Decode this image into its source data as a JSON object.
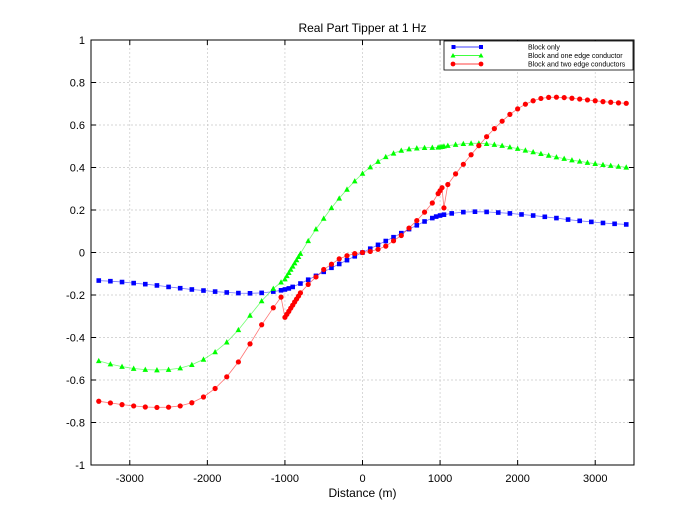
{
  "chart_data": {
    "type": "line",
    "title": "Real Part Tipper at 1 Hz",
    "xlabel": "Distance (m)",
    "ylabel": "",
    "xlim": [
      -3500,
      3500
    ],
    "ylim": [
      -1,
      1
    ],
    "xticks": [
      -3000,
      -2000,
      -1000,
      0,
      1000,
      2000,
      3000
    ],
    "xtick_labels": [
      "-3000",
      "-2000",
      "-1000",
      "0",
      "1000",
      "2000",
      "3000"
    ],
    "yticks": [
      -1,
      -0.8,
      -0.6,
      -0.4,
      -0.2,
      0,
      0.2,
      0.4,
      0.6,
      0.8,
      1
    ],
    "ytick_labels": [
      "-1",
      "-0.8",
      "-0.6",
      "-0.4",
      "-0.2",
      "0",
      "0.2",
      "0.4",
      "0.6",
      "0.8",
      "1"
    ],
    "grid": true,
    "legend_position": "top-right",
    "series": [
      {
        "name": "Block only",
        "color": "#0000ff",
        "marker": "square",
        "x": [
          -3400,
          -3250,
          -3100,
          -2950,
          -2800,
          -2650,
          -2500,
          -2350,
          -2200,
          -2050,
          -1900,
          -1750,
          -1600,
          -1450,
          -1300,
          -1150,
          -1050,
          -1000,
          -950,
          -900,
          -800,
          -700,
          -600,
          -500,
          -400,
          -300,
          -200,
          -100,
          0,
          100,
          200,
          300,
          400,
          500,
          600,
          700,
          800,
          900,
          950,
          1000,
          1050,
          1150,
          1300,
          1450,
          1600,
          1750,
          1900,
          2050,
          2200,
          2350,
          2500,
          2650,
          2800,
          2950,
          3100,
          3250,
          3400
        ],
        "y": [
          -0.132,
          -0.135,
          -0.139,
          -0.144,
          -0.149,
          -0.155,
          -0.162,
          -0.168,
          -0.174,
          -0.179,
          -0.184,
          -0.188,
          -0.191,
          -0.192,
          -0.19,
          -0.184,
          -0.178,
          -0.174,
          -0.169,
          -0.162,
          -0.146,
          -0.128,
          -0.11,
          -0.091,
          -0.072,
          -0.054,
          -0.036,
          -0.018,
          0,
          0.018,
          0.036,
          0.054,
          0.072,
          0.091,
          0.11,
          0.128,
          0.146,
          0.162,
          0.169,
          0.174,
          0.178,
          0.184,
          0.19,
          0.192,
          0.191,
          0.188,
          0.184,
          0.179,
          0.174,
          0.168,
          0.162,
          0.155,
          0.149,
          0.144,
          0.139,
          0.135,
          0.132
        ]
      },
      {
        "name": "Block and one edge conductor",
        "color": "#00ff00",
        "marker": "triangle",
        "x": [
          -3400,
          -3250,
          -3100,
          -2950,
          -2800,
          -2650,
          -2500,
          -2350,
          -2200,
          -2050,
          -1900,
          -1750,
          -1600,
          -1450,
          -1300,
          -1150,
          -1050,
          -1000,
          -975,
          -950,
          -925,
          -900,
          -875,
          -850,
          -825,
          -800,
          -700,
          -600,
          -500,
          -400,
          -300,
          -200,
          -100,
          0,
          100,
          200,
          300,
          400,
          500,
          600,
          700,
          800,
          900,
          975,
          1000,
          1025,
          1050,
          1100,
          1200,
          1300,
          1400,
          1500,
          1600,
          1700,
          1800,
          1900,
          2000,
          2100,
          2200,
          2300,
          2400,
          2500,
          2600,
          2700,
          2800,
          2900,
          3000,
          3100,
          3200,
          3300,
          3400
        ],
        "y": [
          -0.51,
          -0.525,
          -0.537,
          -0.546,
          -0.551,
          -0.553,
          -0.551,
          -0.544,
          -0.528,
          -0.503,
          -0.468,
          -0.422,
          -0.364,
          -0.296,
          -0.228,
          -0.17,
          -0.14,
          -0.125,
          -0.11,
          -0.095,
          -0.08,
          -0.065,
          -0.05,
          -0.035,
          -0.02,
          -0.005,
          0.055,
          0.11,
          0.16,
          0.21,
          0.255,
          0.297,
          0.336,
          0.372,
          0.402,
          0.428,
          0.45,
          0.467,
          0.48,
          0.487,
          0.491,
          0.493,
          0.494,
          0.495,
          0.497,
          0.498,
          0.5,
          0.503,
          0.508,
          0.512,
          0.514,
          0.514,
          0.512,
          0.508,
          0.503,
          0.496,
          0.489,
          0.481,
          0.473,
          0.465,
          0.457,
          0.449,
          0.442,
          0.435,
          0.429,
          0.423,
          0.418,
          0.413,
          0.409,
          0.405,
          0.401
        ]
      },
      {
        "name": "Block and two edge conductors",
        "color": "#ff0000",
        "marker": "circle",
        "x": [
          -3400,
          -3250,
          -3100,
          -2950,
          -2800,
          -2650,
          -2500,
          -2350,
          -2200,
          -2050,
          -1900,
          -1750,
          -1600,
          -1450,
          -1300,
          -1150,
          -1050,
          -1000,
          -975,
          -950,
          -925,
          -900,
          -875,
          -850,
          -825,
          -800,
          -700,
          -600,
          -500,
          -400,
          -300,
          -200,
          -100,
          0,
          100,
          200,
          300,
          400,
          500,
          600,
          700,
          800,
          900,
          975,
          1000,
          1025,
          1050,
          1100,
          1200,
          1300,
          1400,
          1500,
          1600,
          1700,
          1800,
          1900,
          2000,
          2100,
          2200,
          2300,
          2400,
          2500,
          2600,
          2700,
          2800,
          2900,
          3000,
          3100,
          3200,
          3300,
          3400
        ],
        "y": [
          -0.7,
          -0.708,
          -0.716,
          -0.722,
          -0.727,
          -0.729,
          -0.728,
          -0.722,
          -0.707,
          -0.68,
          -0.64,
          -0.585,
          -0.515,
          -0.43,
          -0.34,
          -0.26,
          -0.21,
          -0.305,
          -0.291,
          -0.277,
          -0.262,
          -0.248,
          -0.233,
          -0.219,
          -0.205,
          -0.19,
          -0.15,
          -0.115,
          -0.08,
          -0.055,
          -0.03,
          -0.015,
          -0.005,
          0,
          0.005,
          0.015,
          0.03,
          0.055,
          0.08,
          0.115,
          0.15,
          0.19,
          0.233,
          0.277,
          0.291,
          0.305,
          0.21,
          0.32,
          0.37,
          0.415,
          0.46,
          0.503,
          0.545,
          0.583,
          0.618,
          0.65,
          0.676,
          0.698,
          0.714,
          0.725,
          0.73,
          0.731,
          0.729,
          0.726,
          0.722,
          0.718,
          0.714,
          0.71,
          0.707,
          0.704,
          0.702
        ]
      }
    ]
  }
}
